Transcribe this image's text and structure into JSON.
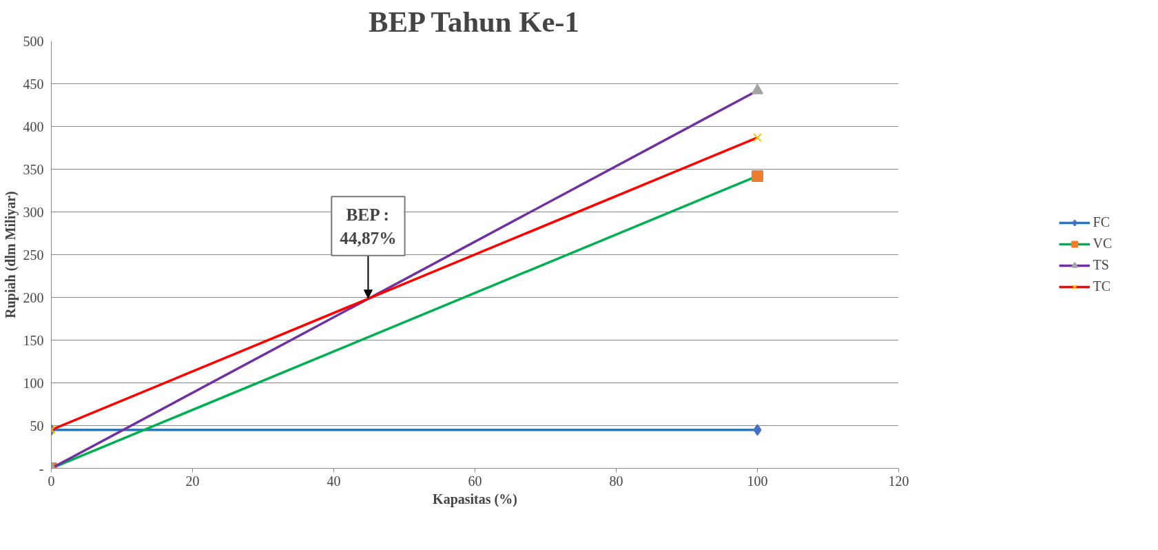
{
  "chart_data": {
    "type": "line",
    "title": "BEP Tahun Ke-1",
    "xlabel": "Kapasitas (%)",
    "ylabel": "Rupiah (dlm Miliyar)",
    "x": [
      0,
      100
    ],
    "series": [
      {
        "name": "FC",
        "color": "#2e75b6",
        "values": [
          45,
          45
        ],
        "marker": "diamond",
        "colors": [
          "#4472c4",
          "#4472c4"
        ]
      },
      {
        "name": "VC",
        "color": "#00b050",
        "values": [
          0,
          342
        ],
        "marker": "square",
        "colors": [
          "#ed7d31",
          "#ed7d31"
        ]
      },
      {
        "name": "TS",
        "color": "#7030a0",
        "values": [
          0,
          442
        ],
        "marker": "triangle",
        "colors": [
          "#a5a5a5",
          "#a5a5a5"
        ]
      },
      {
        "name": "TC",
        "color": "#ff0000",
        "values": [
          45,
          387
        ],
        "marker": "cross",
        "colors": [
          "#ffc000",
          "#ffc000"
        ]
      }
    ],
    "xlim": [
      0,
      120
    ],
    "xticks": [
      0,
      20,
      40,
      60,
      80,
      100,
      120
    ],
    "ylim": [
      0,
      500
    ],
    "yticks": [
      {
        "value": 0,
        "label": "-"
      },
      50,
      100,
      150,
      200,
      250,
      300,
      350,
      400,
      450,
      500
    ],
    "grid": "y",
    "legend": "right",
    "line_style": "solid",
    "annotations": [
      {
        "text": "BEP :\n44,87%",
        "x": 44.87,
        "y": 199
      }
    ]
  }
}
